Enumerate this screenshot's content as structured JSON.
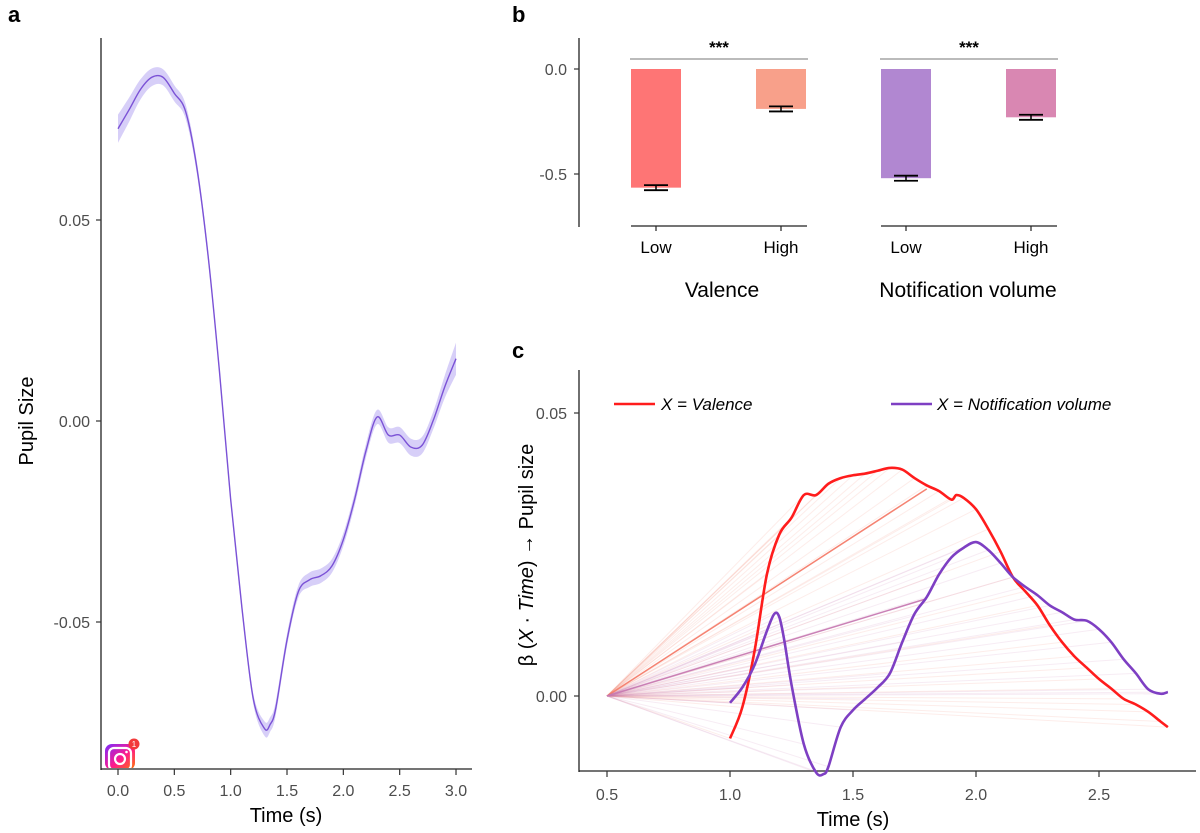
{
  "chart_data": [
    {
      "panel": "a",
      "type": "line",
      "title": "",
      "xlabel": "Time (s)",
      "ylabel": "Pupil Size",
      "xlim": [
        -0.15,
        3.15
      ],
      "ylim": [
        -0.086,
        0.095
      ],
      "xticks": [
        0.0,
        0.5,
        1.0,
        1.5,
        2.0,
        2.5,
        3.0
      ],
      "xtick_labels": [
        "0.0",
        "0.5",
        "1.0",
        "1.5",
        "2.0",
        "2.5",
        "3.0"
      ],
      "yticks": [
        0.05,
        0.0,
        -0.05
      ],
      "ytick_labels": [
        "0.05",
        "0.00",
        "-0.05"
      ],
      "grid": false,
      "line_color": "#7b52d6",
      "band_color": "#c9bff5",
      "series": [
        {
          "name": "Pupil Size",
          "x": [
            0.0,
            0.1,
            0.2,
            0.3,
            0.4,
            0.5,
            0.6,
            0.7,
            0.8,
            0.9,
            1.0,
            1.1,
            1.2,
            1.3,
            1.35,
            1.4,
            1.5,
            1.6,
            1.7,
            1.8,
            1.9,
            2.0,
            2.1,
            2.2,
            2.3,
            2.4,
            2.5,
            2.6,
            2.7,
            2.8,
            2.9,
            3.0
          ],
          "y": [
            0.0727,
            0.0775,
            0.0825,
            0.0855,
            0.0855,
            0.0815,
            0.077,
            0.063,
            0.041,
            0.0125,
            -0.0195,
            -0.0465,
            -0.069,
            -0.0765,
            -0.0755,
            -0.0715,
            -0.0545,
            -0.0425,
            -0.0395,
            -0.0385,
            -0.036,
            -0.0295,
            -0.0195,
            -0.0075,
            0.001,
            -0.0035,
            -0.0035,
            -0.0065,
            -0.006,
            0.0003,
            0.0085,
            0.0155
          ],
          "ci_halfwidth": [
            0.0035,
            0.003,
            0.0025,
            0.0022,
            0.002,
            0.002,
            0.0018,
            0.0015,
            0.0013,
            0.0012,
            0.0012,
            0.0012,
            0.0013,
            0.0018,
            0.0018,
            0.0017,
            0.0015,
            0.0015,
            0.0018,
            0.0018,
            0.0017,
            0.0016,
            0.0016,
            0.0017,
            0.0018,
            0.0019,
            0.002,
            0.0021,
            0.0021,
            0.0022,
            0.0028,
            0.004
          ]
        }
      ],
      "annotation": {
        "icon": "instagram-notification-icon",
        "badge_count": "1"
      }
    },
    {
      "panel": "b",
      "type": "bar",
      "ylabel": "",
      "ylim": [
        -0.75,
        0.14
      ],
      "yticks": [
        0.0,
        -0.5
      ],
      "ytick_labels": [
        "0.0",
        "-0.5"
      ],
      "grid": false,
      "groups": [
        {
          "name": "Valence",
          "categories": [
            "Low",
            "High"
          ],
          "values": [
            -0.565,
            -0.19
          ],
          "errors": [
            0.012,
            0.012
          ],
          "colors": [
            "#fe7575",
            "#f8a08a"
          ],
          "significance": "***"
        },
        {
          "name": "Notification volume",
          "categories": [
            "Low",
            "High"
          ],
          "values": [
            -0.52,
            -0.23
          ],
          "errors": [
            0.012,
            0.012
          ],
          "colors": [
            "#b187d1",
            "#d987b2"
          ],
          "significance": "***"
        }
      ]
    },
    {
      "panel": "c",
      "type": "line",
      "xlabel": "Time (s)",
      "ylabel_parts": {
        "prefix": "β (",
        "x": "X",
        "dot": " · ",
        "time": "Time",
        "suffix": ") → Pupil size"
      },
      "xlim": [
        0.37,
        2.9
      ],
      "ylim": [
        -0.0135,
        0.0625
      ],
      "xticks": [
        0.5,
        1.0,
        1.5,
        2.0,
        2.5
      ],
      "xtick_labels": [
        "0.5",
        "1.0",
        "1.5",
        "2.0",
        "2.5"
      ],
      "yticks": [
        0.0,
        0.05
      ],
      "ytick_labels": [
        "0.00",
        "0.05"
      ],
      "grid": false,
      "legend_position": "top",
      "fan_origin": [
        0.5,
        0.0
      ],
      "series": [
        {
          "name": "X = Valence",
          "color": "#ff1c1c",
          "fan_color": "#f47c6a",
          "highlight_segment_to": [
            1.8,
            0.0366
          ],
          "x": [
            1.0,
            1.05,
            1.1,
            1.15,
            1.2,
            1.25,
            1.3,
            1.35,
            1.4,
            1.45,
            1.5,
            1.55,
            1.6,
            1.65,
            1.7,
            1.75,
            1.8,
            1.85,
            1.9,
            1.92,
            1.95,
            2.0,
            2.05,
            2.1,
            2.15,
            2.2,
            2.25,
            2.3,
            2.35,
            2.4,
            2.45,
            2.5,
            2.55,
            2.6,
            2.65,
            2.7,
            2.75,
            2.78
          ],
          "y": [
            -0.0075,
            -0.002,
            0.008,
            0.0215,
            0.0285,
            0.0315,
            0.0355,
            0.0355,
            0.0375,
            0.0385,
            0.039,
            0.0393,
            0.0398,
            0.0403,
            0.04,
            0.0385,
            0.0372,
            0.0362,
            0.0347,
            0.0355,
            0.035,
            0.033,
            0.0295,
            0.0255,
            0.021,
            0.0185,
            0.016,
            0.0125,
            0.0095,
            0.007,
            0.005,
            0.003,
            0.0013,
            -0.0005,
            -0.0015,
            -0.0028,
            -0.0045,
            -0.0055
          ]
        },
        {
          "name": "X = Notification volume",
          "color": "#7e3fc3",
          "fan_color": "#c77ab2",
          "highlight_segment_to": [
            1.8,
            0.0172
          ],
          "x": [
            1.0,
            1.05,
            1.1,
            1.15,
            1.18,
            1.2,
            1.22,
            1.25,
            1.3,
            1.35,
            1.38,
            1.4,
            1.45,
            1.5,
            1.55,
            1.6,
            1.65,
            1.7,
            1.75,
            1.8,
            1.85,
            1.9,
            1.95,
            2.0,
            2.05,
            2.1,
            2.15,
            2.2,
            2.25,
            2.3,
            2.35,
            2.4,
            2.45,
            2.5,
            2.55,
            2.6,
            2.65,
            2.7,
            2.75,
            2.78
          ],
          "y": [
            -0.0012,
            0.0015,
            0.0055,
            0.0115,
            0.0145,
            0.014,
            0.01,
            0.002,
            -0.0085,
            -0.0135,
            -0.0138,
            -0.0125,
            -0.0055,
            -0.0025,
            -0.0005,
            0.0015,
            0.004,
            0.0095,
            0.0145,
            0.0175,
            0.0215,
            0.0245,
            0.0262,
            0.0272,
            0.0258,
            0.0235,
            0.021,
            0.0193,
            0.0178,
            0.016,
            0.0148,
            0.0135,
            0.0133,
            0.0118,
            0.0095,
            0.0065,
            0.004,
            0.0012,
            0.0004,
            0.0007
          ]
        }
      ]
    }
  ],
  "labels": {
    "panel_a": "a",
    "panel_b": "b",
    "panel_c": "c",
    "a_xlabel": "Time (s)",
    "a_ylabel": "Pupil Size",
    "b_group1": "Valence",
    "b_group2": "Notification volume",
    "b_cat_low": "Low",
    "b_cat_high": "High",
    "b_sig": "***",
    "c_xlabel": "Time (s)",
    "c_legend_valence": "X = Valence",
    "c_legend_notif": "X = Notification volume",
    "badge_count": "1"
  }
}
